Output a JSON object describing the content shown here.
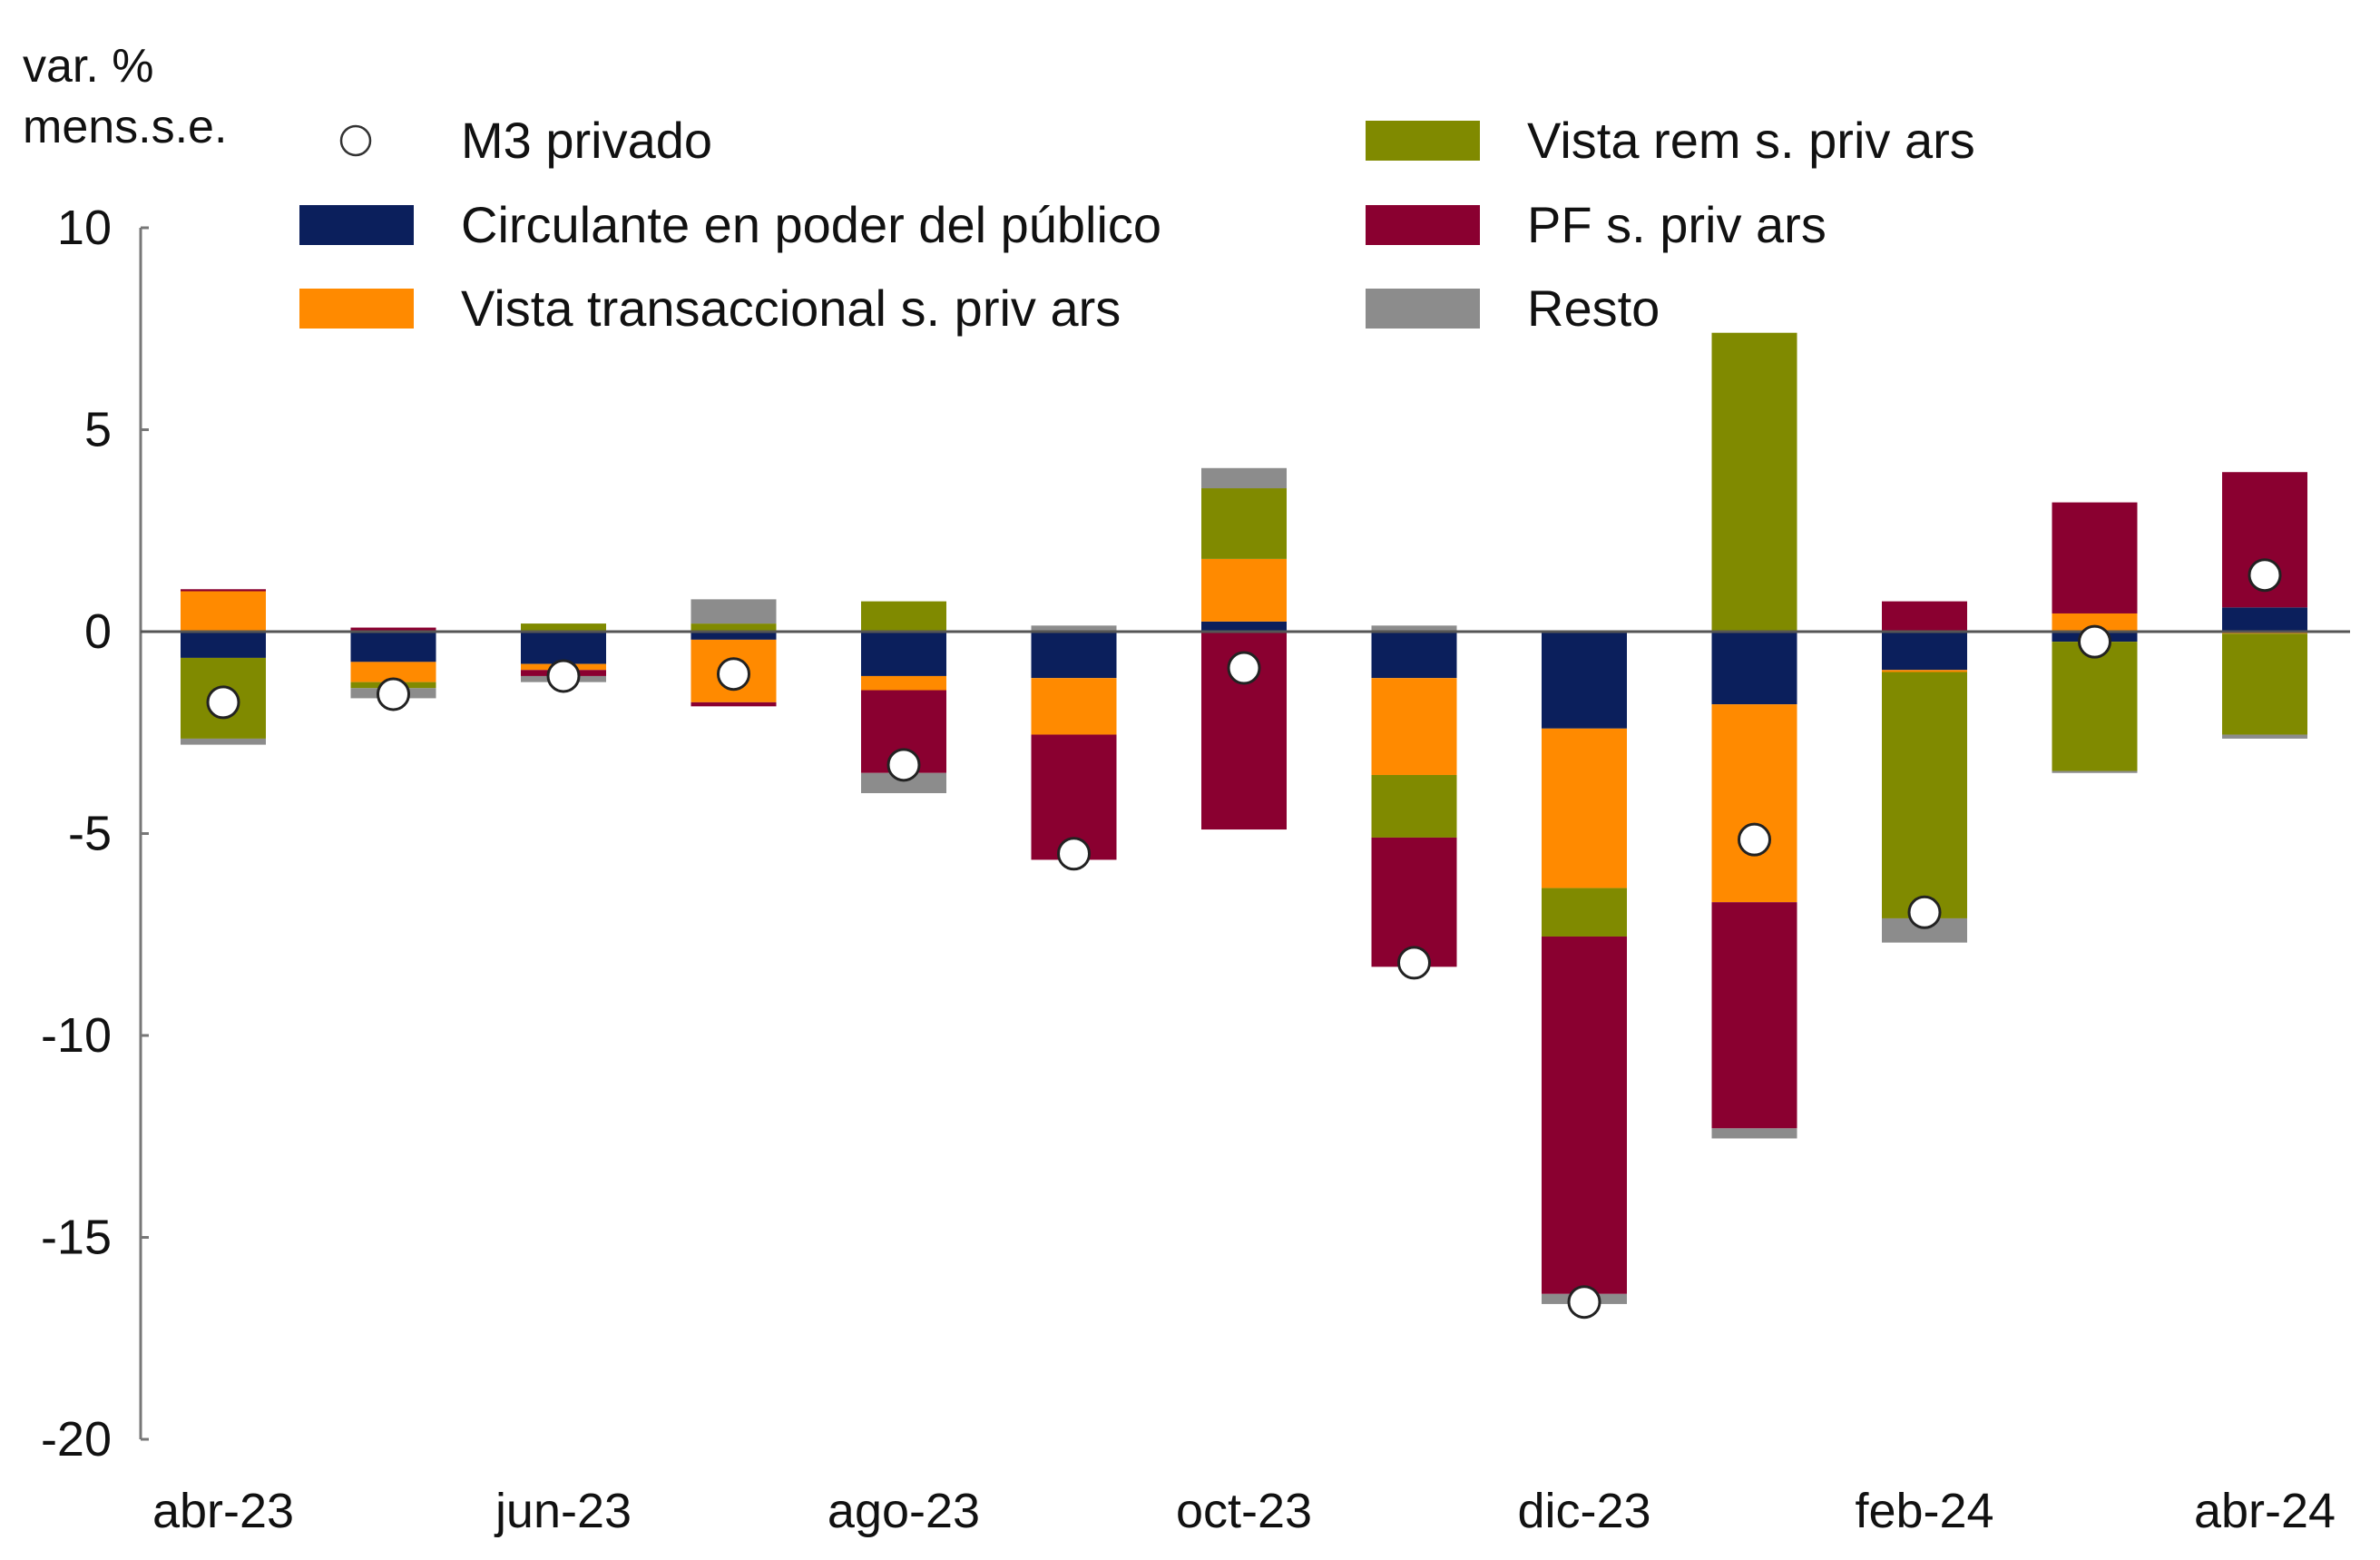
{
  "chart_data": {
    "type": "bar",
    "stacked": true,
    "ylabel": "var. %\nmens.s.e.",
    "ylabel_lines": [
      "var. %",
      "mens.s.e."
    ],
    "ylim": [
      -20,
      10
    ],
    "yticks": [
      10,
      5,
      0,
      -5,
      -10,
      -15,
      -20
    ],
    "categories": [
      "abr-23",
      "may-23",
      "jun-23",
      "jul-23",
      "ago-23",
      "sep-23",
      "oct-23",
      "nov-23",
      "dic-23",
      "ene-24",
      "feb-24",
      "mar-24",
      "abr-24"
    ],
    "xtick_labels": [
      "abr-23",
      "",
      "jun-23",
      "",
      "ago-23",
      "",
      "oct-23",
      "",
      "dic-23",
      "",
      "feb-24",
      "",
      "abr-24"
    ],
    "legend_position": "top",
    "series": [
      {
        "name": "Circulante en poder del público",
        "color": "#0b1f5c",
        "values": [
          -0.65,
          -0.75,
          -0.8,
          -0.2,
          -1.1,
          -1.15,
          0.25,
          -1.15,
          -2.4,
          -1.8,
          -0.95,
          -0.25,
          0.6
        ]
      },
      {
        "name": "Vista transaccional s. priv ars",
        "color": "#ff8a00",
        "values": [
          1.0,
          -0.5,
          -0.15,
          -1.55,
          -0.35,
          -1.4,
          1.55,
          -2.4,
          -3.95,
          -4.9,
          -0.05,
          0.45,
          -0.05
        ]
      },
      {
        "name": "Vista rem s. priv ars",
        "color": "#808a00",
        "values": [
          -2.0,
          -0.15,
          0.2,
          0.2,
          0.75,
          0.0,
          1.75,
          -1.55,
          -1.2,
          7.4,
          -6.1,
          -3.2,
          -2.5
        ]
      },
      {
        "name": "PF s. priv ars",
        "color": "#8a0030",
        "values": [
          0.05,
          0.1,
          -0.15,
          -0.1,
          -2.05,
          -3.1,
          -4.9,
          -3.2,
          -8.85,
          -5.6,
          0.75,
          2.75,
          3.35
        ]
      },
      {
        "name": "Resto",
        "color": "#8c8c8c",
        "values": [
          -0.15,
          -0.25,
          -0.15,
          0.6,
          -0.5,
          0.15,
          0.5,
          0.15,
          -0.25,
          -0.25,
          -0.6,
          -0.05,
          -0.1
        ]
      }
    ],
    "markers": {
      "name": "M3 privado",
      "values": [
        -1.75,
        -1.55,
        -1.1,
        -1.05,
        -3.3,
        -5.5,
        -0.9,
        -8.2,
        -16.6,
        -5.15,
        -6.95,
        -0.25,
        1.4
      ]
    },
    "legend": [
      {
        "label": "M3 privado",
        "kind": "circle"
      },
      {
        "label": "Circulante en poder del público",
        "kind": "square",
        "color": "#0b1f5c"
      },
      {
        "label": "Vista transaccional s. priv ars",
        "kind": "square",
        "color": "#ff8a00"
      },
      {
        "label": "Vista rem s. priv ars",
        "kind": "square",
        "color": "#808a00"
      },
      {
        "label": "PF s. priv ars",
        "kind": "square",
        "color": "#8a0030"
      },
      {
        "label": "Resto",
        "kind": "square",
        "color": "#8c8c8c"
      }
    ]
  }
}
